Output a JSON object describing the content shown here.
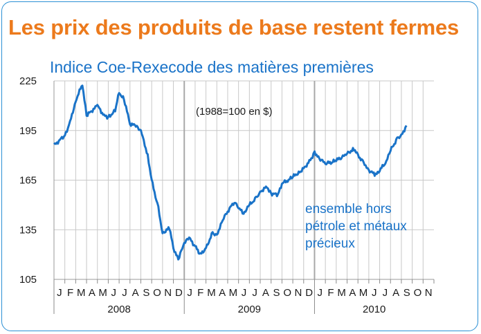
{
  "title": "Les prix des produits de base restent fermes",
  "chart_data": {
    "type": "line",
    "title": "Indice Coe-Rexecode des matières premières",
    "annotation": "(1988=100 en $)",
    "series_label": [
      "ensemble hors",
      "pétrole et métaux",
      "précieux"
    ],
    "ylim": [
      105,
      225
    ],
    "yticks": [
      105,
      135,
      165,
      195,
      225
    ],
    "grid": true,
    "line_color": "#1a73c8",
    "month_labels": [
      "J",
      "F",
      "M",
      "A",
      "M",
      "J",
      "J",
      "A",
      "S",
      "O",
      "N",
      "D",
      "J",
      "F",
      "M",
      "A",
      "M",
      "J",
      "J",
      "A",
      "S",
      "O",
      "N",
      "D",
      "J",
      "F",
      "M",
      "A",
      "M",
      "J",
      "J",
      "A",
      "S",
      "O",
      "N"
    ],
    "years": [
      {
        "label": "2008",
        "start_month": 0,
        "months": 12
      },
      {
        "label": "2009",
        "start_month": 12,
        "months": 12
      },
      {
        "label": "2010",
        "start_month": 24,
        "months": 11
      }
    ],
    "series": [
      {
        "x": [
          "2008-01-01",
          "2008-02-01",
          "2008-02-15",
          "2008-03-01",
          "2008-03-20",
          "2008-04-01",
          "2008-05-01",
          "2008-05-20",
          "2008-06-01",
          "2008-06-20",
          "2008-07-01",
          "2008-07-15",
          "2008-08-01",
          "2008-08-15",
          "2008-09-01",
          "2008-09-20",
          "2008-10-01",
          "2008-10-20",
          "2008-11-01",
          "2008-11-20",
          "2008-12-01",
          "2008-12-15",
          "2009-01-01",
          "2009-01-15",
          "2009-02-01",
          "2009-02-15",
          "2009-03-01",
          "2009-03-20",
          "2009-04-01",
          "2009-04-20",
          "2009-05-01",
          "2009-05-20",
          "2009-06-01",
          "2009-06-15",
          "2009-07-01",
          "2009-07-20",
          "2009-08-01",
          "2009-08-20",
          "2009-09-01",
          "2009-09-20",
          "2009-10-01",
          "2009-10-20",
          "2009-11-01",
          "2009-11-20",
          "2009-12-01",
          "2009-12-20",
          "2010-01-01",
          "2010-01-15",
          "2010-02-01",
          "2010-02-20",
          "2010-03-01",
          "2010-03-20",
          "2010-04-01",
          "2010-04-20",
          "2010-05-01",
          "2010-05-20",
          "2010-06-01",
          "2010-06-20",
          "2010-07-01",
          "2010-07-20",
          "2010-08-01",
          "2010-08-20",
          "2010-09-01",
          "2010-09-15"
        ],
        "y": [
          186,
          192,
          200,
          213,
          223,
          204,
          210,
          204,
          203,
          207,
          218,
          214,
          199,
          198,
          195,
          180,
          165,
          148,
          133,
          136,
          124,
          117,
          127,
          130,
          125,
          120,
          124,
          133,
          132,
          142,
          146,
          152,
          148,
          145,
          150,
          154,
          158,
          161,
          157,
          156,
          163,
          165,
          167,
          170,
          172,
          177,
          182,
          178,
          175,
          176,
          177,
          179,
          181,
          184,
          180,
          175,
          171,
          168,
          171,
          176,
          183,
          190,
          192,
          198
        ]
      }
    ]
  }
}
